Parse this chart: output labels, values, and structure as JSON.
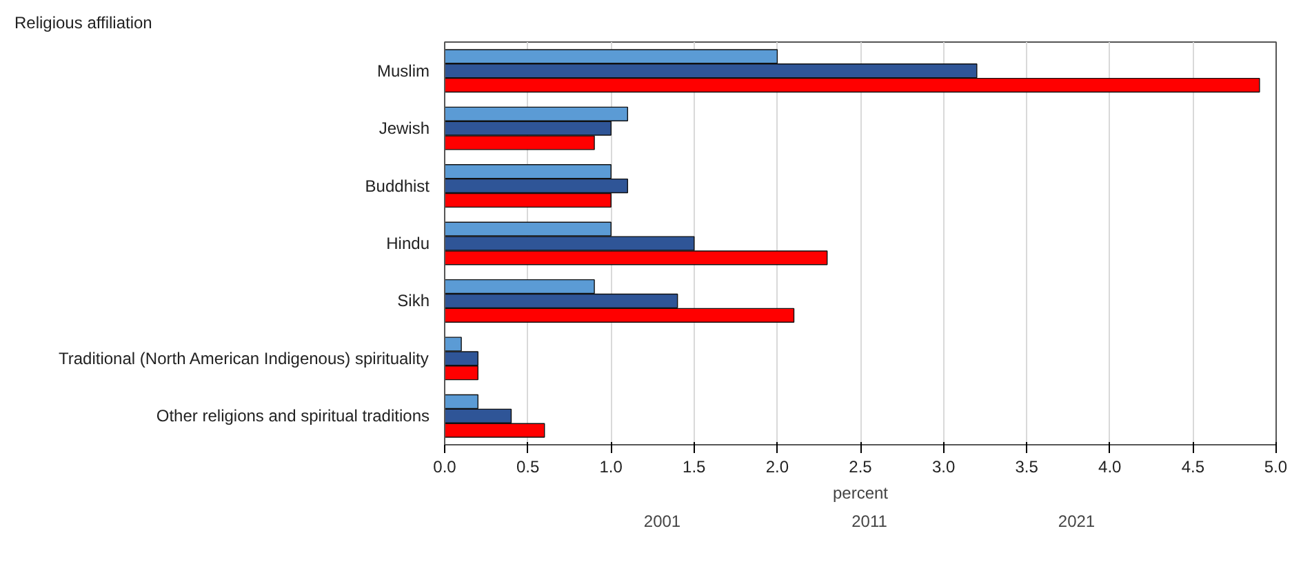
{
  "chart_data": {
    "type": "bar",
    "orientation": "horizontal",
    "annotations": [
      "Religious affiliation"
    ],
    "xlabel": "percent",
    "categories": [
      "Muslim",
      "Jewish",
      "Buddhist",
      "Hindu",
      "Sikh",
      "Traditional (North American Indigenous) spirituality",
      "Other religions and spiritual traditions"
    ],
    "series": [
      {
        "name": "2001",
        "color": "#5b9bd5",
        "values": [
          2.0,
          1.1,
          1.0,
          1.0,
          0.9,
          0.1,
          0.2
        ]
      },
      {
        "name": "2011",
        "color": "#2f5597",
        "values": [
          3.2,
          1.0,
          1.1,
          1.5,
          1.4,
          0.2,
          0.4
        ]
      },
      {
        "name": "2021",
        "color": "#ff0000",
        "values": [
          4.9,
          0.9,
          1.0,
          2.3,
          2.1,
          0.2,
          0.6
        ]
      }
    ],
    "xlim": [
      0,
      5
    ],
    "xticks": [
      {
        "value": 0,
        "label": "0.0"
      },
      {
        "value": 0.5,
        "label": "0.5"
      },
      {
        "value": 1,
        "label": "1.0"
      },
      {
        "value": 1.5,
        "label": "1.5"
      },
      {
        "value": 2,
        "label": "2.0"
      },
      {
        "value": 2.5,
        "label": "2.5"
      },
      {
        "value": 3,
        "label": "3.0"
      },
      {
        "value": 3.5,
        "label": "3.5"
      },
      {
        "value": 4,
        "label": "4.0"
      },
      {
        "value": 4.5,
        "label": "4.5"
      },
      {
        "value": 5,
        "label": "5.0"
      }
    ],
    "grid": "x",
    "legend": "bottom"
  }
}
